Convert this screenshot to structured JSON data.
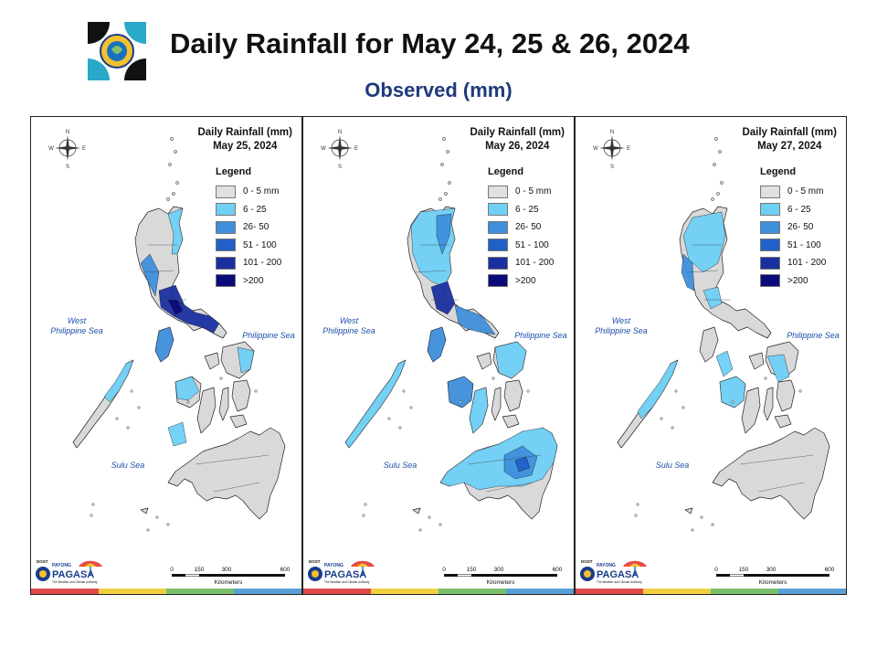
{
  "header": {
    "title": "Daily Rainfall for May 24, 25 & 26, 2024",
    "subtitle": "Observed (mm)"
  },
  "legend": {
    "title": "Legend",
    "items": [
      {
        "label": "0 - 5 mm",
        "color": "#e0e0e0"
      },
      {
        "label": "6 - 25",
        "color": "#6fd0f5"
      },
      {
        "label": "26- 50",
        "color": "#3f8fdc"
      },
      {
        "label": "51 - 100",
        "color": "#2060c8"
      },
      {
        "label": "101 - 200",
        "color": "#1a30a0"
      },
      {
        "label": ">200",
        "color": "#0a0a7a"
      }
    ]
  },
  "panels": [
    {
      "title_line1": "Daily Rainfall (mm)",
      "date": "May 25, 2024"
    },
    {
      "title_line1": "Daily Rainfall (mm)",
      "date": "May 26, 2024"
    },
    {
      "title_line1": "Daily Rainfall (mm)",
      "date": "May 27, 2024"
    }
  ],
  "map_labels": {
    "west_sea_line1": "West",
    "west_sea_line2": "Philippine Sea",
    "east_sea": "Philippine Sea",
    "sulu_sea": "Sulu Sea"
  },
  "compass": {
    "n": "N",
    "s": "S",
    "e": "E",
    "w": "W"
  },
  "scale": {
    "ticks": [
      "0",
      "150",
      "300",
      "600"
    ],
    "unit": "Kilometers"
  },
  "branding": {
    "dost": "DOST",
    "payong": "PAYONG",
    "pagasa": "PAGASA",
    "tagline": "The Weather and Climate Authority"
  },
  "stripe_colors": [
    "#e04a4a",
    "#f0d040",
    "#7cbf6a",
    "#5aa0d8"
  ]
}
